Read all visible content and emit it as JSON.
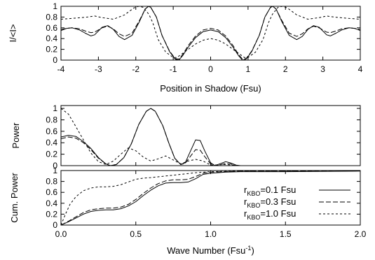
{
  "chart_data": [
    {
      "id": "shadow",
      "type": "line",
      "xlabel": "Position in Shadow (Fsu)",
      "ylabel": "I/<I>",
      "xlim": [
        -4,
        4
      ],
      "ylim": [
        0,
        1
      ],
      "xticks": [
        "-4",
        "-3",
        "-2",
        "-1",
        "0",
        "1",
        "2",
        "3",
        "4"
      ],
      "yticks": [
        "0",
        "0.2",
        "0.4",
        "0.6",
        "0.8",
        "1"
      ],
      "grid": false,
      "series": [
        {
          "style": "solid",
          "points": [
            [
              0,
              0.56
            ],
            [
              0.2,
              0.53
            ],
            [
              0.4,
              0.42
            ],
            [
              0.6,
              0.24
            ],
            [
              0.75,
              0.08
            ],
            [
              0.85,
              0.0
            ],
            [
              0.95,
              0.02
            ],
            [
              1.1,
              0.16
            ],
            [
              1.3,
              0.46
            ],
            [
              1.45,
              0.8
            ],
            [
              1.6,
              0.98
            ],
            [
              1.66,
              1.0
            ],
            [
              1.75,
              0.95
            ],
            [
              1.9,
              0.72
            ],
            [
              2.1,
              0.46
            ],
            [
              2.3,
              0.38
            ],
            [
              2.45,
              0.44
            ],
            [
              2.6,
              0.57
            ],
            [
              2.75,
              0.64
            ],
            [
              2.9,
              0.61
            ],
            [
              3.1,
              0.47
            ],
            [
              3.2,
              0.45
            ],
            [
              3.35,
              0.5
            ],
            [
              3.5,
              0.56
            ],
            [
              3.7,
              0.6
            ],
            [
              3.85,
              0.59
            ],
            [
              4.0,
              0.55
            ]
          ]
        },
        {
          "style": "dashed",
          "points": [
            [
              0,
              0.59
            ],
            [
              0.2,
              0.56
            ],
            [
              0.4,
              0.45
            ],
            [
              0.6,
              0.27
            ],
            [
              0.75,
              0.1
            ],
            [
              0.85,
              0.02
            ],
            [
              0.95,
              0.03
            ],
            [
              1.1,
              0.17
            ],
            [
              1.3,
              0.46
            ],
            [
              1.45,
              0.8
            ],
            [
              1.6,
              0.98
            ],
            [
              1.66,
              1.0
            ],
            [
              1.75,
              0.95
            ],
            [
              1.9,
              0.74
            ],
            [
              2.1,
              0.5
            ],
            [
              2.3,
              0.44
            ],
            [
              2.45,
              0.49
            ],
            [
              2.6,
              0.58
            ],
            [
              2.75,
              0.63
            ],
            [
              2.9,
              0.6
            ],
            [
              3.1,
              0.52
            ],
            [
              3.2,
              0.51
            ],
            [
              3.35,
              0.54
            ],
            [
              3.5,
              0.58
            ],
            [
              3.7,
              0.6
            ],
            [
              3.85,
              0.59
            ],
            [
              4.0,
              0.57
            ]
          ]
        },
        {
          "style": "dotted",
          "points": [
            [
              0,
              0.4
            ],
            [
              0.2,
              0.37
            ],
            [
              0.4,
              0.3
            ],
            [
              0.6,
              0.2
            ],
            [
              0.8,
              0.1
            ],
            [
              0.9,
              0.05
            ],
            [
              1.0,
              0.05
            ],
            [
              1.2,
              0.15
            ],
            [
              1.4,
              0.38
            ],
            [
              1.55,
              0.7
            ],
            [
              1.65,
              0.85
            ],
            [
              1.8,
              0.98
            ],
            [
              1.92,
              1.0
            ],
            [
              2.05,
              0.97
            ],
            [
              2.3,
              0.84
            ],
            [
              2.6,
              0.76
            ],
            [
              2.9,
              0.79
            ],
            [
              3.1,
              0.82
            ],
            [
              3.3,
              0.8
            ],
            [
              3.6,
              0.78
            ],
            [
              4.0,
              0.76
            ]
          ]
        }
      ]
    },
    {
      "id": "power",
      "type": "line",
      "xlabel": "",
      "ylabel": "Power",
      "xlim": [
        0,
        2
      ],
      "ylim": [
        0,
        1.05
      ],
      "yticks": [
        "0",
        "0.2",
        "0.4",
        "0.6",
        "0.8",
        "1"
      ],
      "grid": false,
      "series": [
        {
          "style": "solid",
          "points": [
            [
              0,
              0.5
            ],
            [
              0.05,
              0.53
            ],
            [
              0.1,
              0.51
            ],
            [
              0.15,
              0.42
            ],
            [
              0.2,
              0.3
            ],
            [
              0.25,
              0.14
            ],
            [
              0.3,
              0.03
            ],
            [
              0.33,
              0.0
            ],
            [
              0.37,
              0.02
            ],
            [
              0.42,
              0.14
            ],
            [
              0.47,
              0.38
            ],
            [
              0.52,
              0.72
            ],
            [
              0.57,
              0.95
            ],
            [
              0.6,
              1.0
            ],
            [
              0.63,
              0.95
            ],
            [
              0.68,
              0.7
            ],
            [
              0.72,
              0.4
            ],
            [
              0.76,
              0.13
            ],
            [
              0.8,
              0.02
            ],
            [
              0.83,
              0.05
            ],
            [
              0.87,
              0.28
            ],
            [
              0.9,
              0.45
            ],
            [
              0.93,
              0.44
            ],
            [
              0.96,
              0.26
            ],
            [
              1.0,
              0.05
            ],
            [
              1.03,
              0.0
            ],
            [
              1.07,
              0.04
            ],
            [
              1.1,
              0.07
            ],
            [
              1.13,
              0.05
            ],
            [
              1.17,
              0.01
            ],
            [
              1.2,
              0.0
            ],
            [
              2.0,
              0.0
            ]
          ]
        },
        {
          "style": "dashed",
          "points": [
            [
              0,
              0.47
            ],
            [
              0.05,
              0.5
            ],
            [
              0.1,
              0.48
            ],
            [
              0.15,
              0.4
            ],
            [
              0.2,
              0.28
            ],
            [
              0.25,
              0.13
            ],
            [
              0.3,
              0.03
            ],
            [
              0.33,
              0.0
            ],
            [
              0.37,
              0.02
            ],
            [
              0.42,
              0.14
            ],
            [
              0.47,
              0.38
            ],
            [
              0.52,
              0.72
            ],
            [
              0.57,
              0.95
            ],
            [
              0.6,
              1.0
            ],
            [
              0.63,
              0.95
            ],
            [
              0.68,
              0.7
            ],
            [
              0.72,
              0.4
            ],
            [
              0.76,
              0.13
            ],
            [
              0.8,
              0.02
            ],
            [
              0.83,
              0.04
            ],
            [
              0.87,
              0.18
            ],
            [
              0.9,
              0.28
            ],
            [
              0.93,
              0.27
            ],
            [
              0.96,
              0.16
            ],
            [
              1.0,
              0.03
            ],
            [
              1.03,
              0.0
            ],
            [
              1.07,
              0.02
            ],
            [
              1.1,
              0.04
            ],
            [
              1.13,
              0.03
            ],
            [
              1.17,
              0.0
            ],
            [
              2.0,
              0.0
            ]
          ]
        },
        {
          "style": "dotted",
          "points": [
            [
              0,
              1.0
            ],
            [
              0.05,
              0.9
            ],
            [
              0.1,
              0.68
            ],
            [
              0.15,
              0.45
            ],
            [
              0.2,
              0.22
            ],
            [
              0.25,
              0.07
            ],
            [
              0.3,
              0.02
            ],
            [
              0.35,
              0.08
            ],
            [
              0.4,
              0.2
            ],
            [
              0.45,
              0.31
            ],
            [
              0.5,
              0.26
            ],
            [
              0.55,
              0.15
            ],
            [
              0.6,
              0.08
            ],
            [
              0.65,
              0.12
            ],
            [
              0.7,
              0.17
            ],
            [
              0.75,
              0.1
            ],
            [
              0.8,
              0.03
            ],
            [
              0.85,
              0.08
            ],
            [
              0.9,
              0.11
            ],
            [
              0.95,
              0.08
            ],
            [
              1.0,
              0.01
            ],
            [
              1.1,
              0.02
            ],
            [
              1.2,
              0.0
            ],
            [
              2.0,
              0.0
            ]
          ]
        }
      ]
    },
    {
      "id": "cumulative",
      "type": "line",
      "xlabel": "Wave Number (Fsu",
      "xlabel_sup": "-1",
      "xlabel_end": ")",
      "ylabel": "Cum. Power",
      "xlim": [
        0,
        2
      ],
      "ylim": [
        0,
        1
      ],
      "xticks": [
        "0.0",
        "0.5",
        "1.0",
        "1.5",
        "2.0"
      ],
      "yticks": [
        "0",
        "0.2",
        "0.4",
        "0.6",
        "0.8",
        "1"
      ],
      "grid": false,
      "legend_position": "bottom-right",
      "series": [
        {
          "name_prefix": "r",
          "name_sub": "KBO",
          "name_suffix": "=0.1 Fsu",
          "style": "solid",
          "points": [
            [
              0,
              0
            ],
            [
              0.05,
              0.06
            ],
            [
              0.1,
              0.13
            ],
            [
              0.15,
              0.2
            ],
            [
              0.2,
              0.25
            ],
            [
              0.25,
              0.27
            ],
            [
              0.3,
              0.28
            ],
            [
              0.35,
              0.28
            ],
            [
              0.4,
              0.3
            ],
            [
              0.45,
              0.35
            ],
            [
              0.5,
              0.43
            ],
            [
              0.55,
              0.54
            ],
            [
              0.6,
              0.64
            ],
            [
              0.65,
              0.72
            ],
            [
              0.7,
              0.77
            ],
            [
              0.75,
              0.78
            ],
            [
              0.8,
              0.78
            ],
            [
              0.85,
              0.79
            ],
            [
              0.9,
              0.85
            ],
            [
              0.95,
              0.93
            ],
            [
              1.0,
              0.95
            ],
            [
              1.1,
              0.97
            ],
            [
              1.2,
              0.98
            ],
            [
              1.5,
              0.98
            ],
            [
              2.0,
              0.99
            ]
          ]
        },
        {
          "name_prefix": "r",
          "name_sub": "KBO",
          "name_suffix": "=0.3 Fsu",
          "style": "dashed",
          "points": [
            [
              0,
              0
            ],
            [
              0.05,
              0.07
            ],
            [
              0.1,
              0.15
            ],
            [
              0.15,
              0.23
            ],
            [
              0.2,
              0.28
            ],
            [
              0.25,
              0.3
            ],
            [
              0.3,
              0.31
            ],
            [
              0.35,
              0.31
            ],
            [
              0.4,
              0.33
            ],
            [
              0.45,
              0.38
            ],
            [
              0.5,
              0.47
            ],
            [
              0.55,
              0.58
            ],
            [
              0.6,
              0.68
            ],
            [
              0.65,
              0.76
            ],
            [
              0.7,
              0.81
            ],
            [
              0.75,
              0.83
            ],
            [
              0.8,
              0.83
            ],
            [
              0.85,
              0.84
            ],
            [
              0.9,
              0.89
            ],
            [
              0.95,
              0.95
            ],
            [
              1.0,
              0.97
            ],
            [
              1.1,
              0.98
            ],
            [
              1.2,
              0.99
            ],
            [
              1.5,
              0.99
            ],
            [
              2.0,
              1.0
            ]
          ]
        },
        {
          "name_prefix": "r",
          "name_sub": "KBO",
          "name_suffix": "=1.0 Fsu",
          "style": "dotted",
          "points": [
            [
              0,
              0
            ],
            [
              0.03,
              0.2
            ],
            [
              0.06,
              0.38
            ],
            [
              0.1,
              0.52
            ],
            [
              0.15,
              0.63
            ],
            [
              0.2,
              0.68
            ],
            [
              0.25,
              0.7
            ],
            [
              0.3,
              0.7
            ],
            [
              0.35,
              0.71
            ],
            [
              0.4,
              0.74
            ],
            [
              0.45,
              0.79
            ],
            [
              0.5,
              0.84
            ],
            [
              0.55,
              0.86
            ],
            [
              0.6,
              0.87
            ],
            [
              0.7,
              0.9
            ],
            [
              0.8,
              0.93
            ],
            [
              0.9,
              0.96
            ],
            [
              1.0,
              0.98
            ],
            [
              1.2,
              0.99
            ],
            [
              2.0,
              1.0
            ]
          ]
        }
      ]
    }
  ]
}
